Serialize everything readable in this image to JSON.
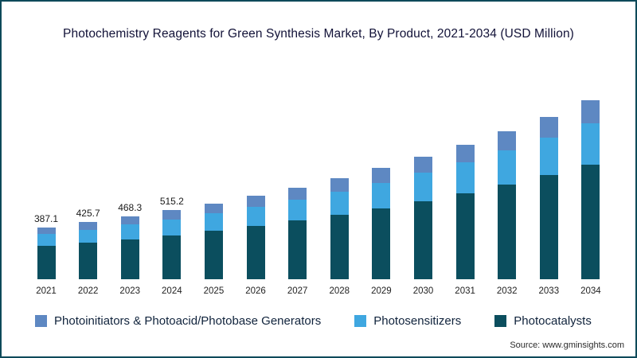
{
  "chart_data": {
    "type": "bar",
    "stacked": true,
    "title": "Photochemistry Reagents for Green Synthesis Market, By Product, 2021-2034 (USD Million)",
    "categories": [
      "2021",
      "2022",
      "2023",
      "2024",
      "2025",
      "2026",
      "2027",
      "2028",
      "2029",
      "2030",
      "2031",
      "2032",
      "2033",
      "2034"
    ],
    "series": [
      {
        "name": "Photocatalysts",
        "color": "#0b4e5e",
        "values": [
          247.7,
          272.4,
          299.7,
          329.7,
          362.8,
          399.0,
          438.9,
          482.8,
          531.1,
          584.2,
          642.6,
          706.9,
          777.5,
          855.3
        ]
      },
      {
        "name": "Photosensitizers",
        "color": "#3fa7e0",
        "values": [
          89.0,
          97.9,
          107.7,
          118.5,
          130.4,
          143.4,
          157.7,
          173.5,
          190.9,
          209.9,
          230.9,
          254.0,
          279.4,
          307.4
        ]
      },
      {
        "name": "Photoinitiators & Photoacid/Photobase Generators",
        "color": "#5e88c2",
        "values": [
          50.4,
          55.4,
          60.9,
          67.0,
          73.6,
          81.0,
          89.2,
          98.1,
          107.8,
          118.7,
          130.6,
          143.6,
          158.0,
          173.7
        ]
      }
    ],
    "totals": [
      387.1,
      425.7,
      468.3,
      515.2,
      566.8,
      623.4,
      685.8,
      754.4,
      829.8,
      912.8,
      1004.1,
      1104.5,
      1214.9,
      1336.4
    ],
    "value_labels": [
      "387.1",
      "425.7",
      "468.3",
      "515.2",
      "",
      "",
      "",
      "",
      "",
      "",
      "",
      "",
      "",
      ""
    ],
    "ylim": [
      0,
      1400
    ],
    "grid": false,
    "legend_position": "bottom"
  },
  "source": "Source: www.gminsights.com"
}
